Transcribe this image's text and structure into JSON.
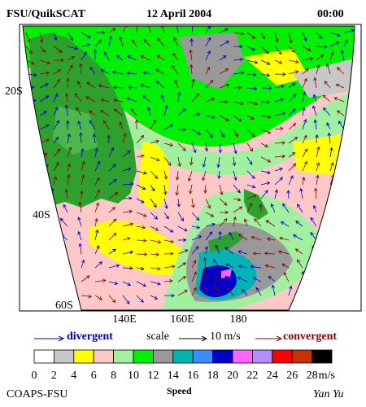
{
  "header": {
    "left": "FSU/QuikSCAT",
    "center": "12 April 2004",
    "right": "00:00"
  },
  "map": {
    "lat_labels": [
      "20S",
      "40S",
      "60S"
    ],
    "lon_labels": [
      "140E",
      "160E",
      "180"
    ]
  },
  "legend": {
    "divergent": "divergent",
    "scale": "scale",
    "scale_value": "10 m/s",
    "convergent": "convergent"
  },
  "colorbar": {
    "ticks": [
      0,
      2,
      4,
      6,
      8,
      10,
      12,
      14,
      16,
      18,
      20,
      22,
      24,
      26,
      28
    ],
    "unit": "m/s",
    "colors": [
      "#ffffff",
      "#c8c8c8",
      "#ffff00",
      "#ffc8c8",
      "#a0f0a0",
      "#00f000",
      "#999999",
      "#00b4b4",
      "#3c8cff",
      "#0000c8",
      "#ff64ff",
      "#b48cff",
      "#ff0000",
      "#c83200",
      "#000000"
    ]
  },
  "footer": {
    "left": "COAPS-FSU",
    "center": "Speed",
    "right": "Yan Yu"
  }
}
